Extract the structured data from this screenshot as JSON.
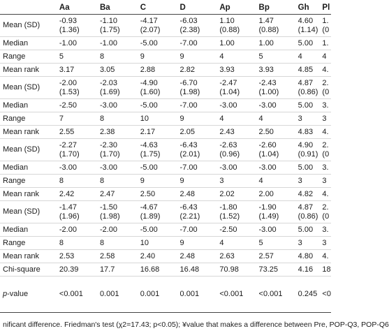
{
  "columns": [
    "",
    "Aa",
    "Ba",
    "C",
    "D",
    "Ap",
    "Bp",
    "Gh",
    "Pl"
  ],
  "rows": [
    {
      "label": "Mean (SD)",
      "cells": [
        "-0.93\n(1.36)",
        "-1.10\n(1.75)",
        "-4.17\n(2.07)",
        "-6.03\n(2.38)",
        "1.10\n(0.88)",
        "1.47\n(0.88)",
        "4.60\n(1.14)",
        "1.\n(0"
      ]
    },
    {
      "label": "Median",
      "cells": [
        "-1.00",
        "-1.00",
        "-5.00",
        "-7.00",
        "1.00",
        "1.00",
        "5.00",
        "1."
      ]
    },
    {
      "label": "Range",
      "cells": [
        "5",
        "8",
        "9",
        "9",
        "4",
        "5",
        "4",
        "4"
      ]
    },
    {
      "label": "Mean rank",
      "cells": [
        "3.17",
        "3.05",
        "2.88",
        "2.82",
        "3.93",
        "3.93",
        "4.85",
        "4."
      ]
    },
    {
      "label": "Mean (SD)",
      "cells": [
        "-2.00\n(1.53)",
        "-2.03\n(1.69)",
        "-4.90\n(1.60)",
        "-6.70\n(1.98)",
        "-2.47\n(1.04)",
        "-2.43\n(1.00)",
        "4.87\n(0.86)",
        "2.\n(0"
      ]
    },
    {
      "label": "Median",
      "cells": [
        "-2.50",
        "-3.00",
        "-5.00",
        "-7.00",
        "-3.00",
        "-3.00",
        "5.00",
        "3."
      ]
    },
    {
      "label": "Range",
      "cells": [
        "7",
        "8",
        "10",
        "9",
        "4",
        "4",
        "3",
        "3"
      ]
    },
    {
      "label": "Mean rank",
      "cells": [
        "2.55",
        "2.38",
        "2.17",
        "2.05",
        "2.43",
        "2.50",
        "4.83",
        "4."
      ]
    },
    {
      "label": "Mean (SD)",
      "cells": [
        "-2.27\n(1.70)",
        "-2.30\n(1.70)",
        "-4.63\n(1.75)",
        "-6.43\n(2.01)",
        "-2.63\n(0.96)",
        "-2.60\n(1.04)",
        "4.90\n(0.91)",
        "2.\n(0"
      ]
    },
    {
      "label": "Median",
      "cells": [
        "-3.00",
        "-3.00",
        "-5.00",
        "-7.00",
        "-3.00",
        "-3.00",
        "5.00",
        "3."
      ]
    },
    {
      "label": "Range",
      "cells": [
        "8",
        "8",
        "9",
        "9",
        "3",
        "4",
        "3",
        "3"
      ]
    },
    {
      "label": "Mean rank",
      "cells": [
        "2.42",
        "2.47",
        "2.50",
        "2.48",
        "2.02",
        "2.00",
        "4.82",
        "4."
      ]
    },
    {
      "label": "Mean (SD)",
      "cells": [
        "-1.47\n(1.96)",
        "-1.50\n(1.98)",
        "-4.67\n(1.89)",
        "-6.43\n(2.21)",
        "-1.80\n(1.52)",
        "-1.90\n(1.49)",
        "4.87\n(0.86)",
        "2.\n(0"
      ]
    },
    {
      "label": "Median",
      "cells": [
        "-2.00",
        "-2.00",
        "-5.00",
        "-7.00",
        "-2.50",
        "-3.00",
        "5.00",
        "3."
      ]
    },
    {
      "label": "Range",
      "cells": [
        "8",
        "8",
        "10",
        "9",
        "4",
        "5",
        "3",
        "3"
      ]
    },
    {
      "label": "Mean rank",
      "cells": [
        "2.53",
        "2.58",
        "2.40",
        "2.48",
        "2.63",
        "2.57",
        "4.80",
        "4."
      ]
    },
    {
      "label": "Chi-square",
      "cells": [
        "20.39",
        "17.7",
        "16.68",
        "16.48",
        "70.98",
        "73.25",
        "4.16",
        "18"
      ]
    },
    {
      "label": "p-value",
      "cells": [
        "<0.001",
        "0.001",
        "0.001",
        "0.001",
        "<0.001",
        "<0.001",
        "0.245",
        "<0"
      ]
    }
  ],
  "footer": "nificant difference. Friedman's test (χ2=17.43; p<0.05); ¥value that makes a difference between Pre, POP-Q3, POP-Q6"
}
